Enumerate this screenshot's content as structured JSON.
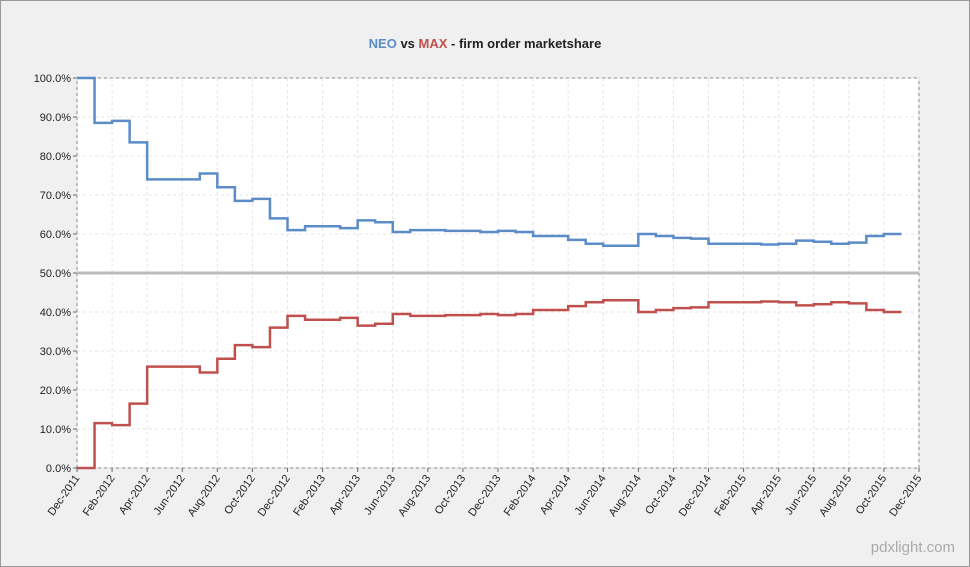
{
  "chart_data": {
    "type": "line",
    "step": true,
    "title_parts": [
      "NEO",
      " vs ",
      "MAX",
      " - firm order marketshare"
    ],
    "x": [
      "2011-12",
      "2012-01",
      "2012-02",
      "2012-03",
      "2012-04",
      "2012-05",
      "2012-06",
      "2012-07",
      "2012-08",
      "2012-09",
      "2012-10",
      "2012-11",
      "2012-12",
      "2013-01",
      "2013-02",
      "2013-03",
      "2013-04",
      "2013-05",
      "2013-06",
      "2013-07",
      "2013-08",
      "2013-09",
      "2013-10",
      "2013-11",
      "2013-12",
      "2014-01",
      "2014-02",
      "2014-03",
      "2014-04",
      "2014-05",
      "2014-06",
      "2014-07",
      "2014-08",
      "2014-09",
      "2014-10",
      "2014-11",
      "2014-12",
      "2015-01",
      "2015-02",
      "2015-03",
      "2015-04",
      "2015-05",
      "2015-06",
      "2015-07",
      "2015-08",
      "2015-09",
      "2015-10",
      "2015-11"
    ],
    "series": [
      {
        "name": "NEO",
        "color": "#5b8cc8",
        "values": [
          100,
          88.5,
          89,
          83.5,
          74,
          74,
          74,
          75.5,
          72,
          68.5,
          69,
          64,
          61,
          62,
          62,
          61.5,
          63.5,
          63,
          60.5,
          61,
          61,
          60.8,
          60.8,
          60.5,
          60.8,
          60.5,
          59.5,
          59.5,
          58.5,
          57.5,
          57,
          57,
          60,
          59.5,
          59,
          58.8,
          57.5,
          57.5,
          57.5,
          57.3,
          57.5,
          58.3,
          58,
          57.5,
          57.8,
          59.5,
          60,
          60
        ]
      },
      {
        "name": "MAX",
        "color": "#c0504d",
        "values": [
          0,
          11.5,
          11,
          16.5,
          26,
          26,
          26,
          24.5,
          28,
          31.5,
          31,
          36,
          39,
          38,
          38,
          38.5,
          36.5,
          37,
          39.5,
          39,
          39,
          39.2,
          39.2,
          39.5,
          39.2,
          39.5,
          40.5,
          40.5,
          41.5,
          42.5,
          43,
          43,
          40,
          40.5,
          41,
          41.2,
          42.5,
          42.5,
          42.5,
          42.7,
          42.5,
          41.7,
          42,
          42.5,
          42.2,
          40.5,
          40,
          40
        ]
      }
    ],
    "xlim": [
      "2011-12",
      "2015-12"
    ],
    "xticks": [
      {
        "value": "2011-12",
        "label": "Dec-2011"
      },
      {
        "value": "2012-02",
        "label": "Feb-2012"
      },
      {
        "value": "2012-04",
        "label": "Apr-2012"
      },
      {
        "value": "2012-06",
        "label": "Jun-2012"
      },
      {
        "value": "2012-08",
        "label": "Aug-2012"
      },
      {
        "value": "2012-10",
        "label": "Oct-2012"
      },
      {
        "value": "2012-12",
        "label": "Dec-2012"
      },
      {
        "value": "2013-02",
        "label": "Feb-2013"
      },
      {
        "value": "2013-04",
        "label": "Apr-2013"
      },
      {
        "value": "2013-06",
        "label": "Jun-2013"
      },
      {
        "value": "2013-08",
        "label": "Aug-2013"
      },
      {
        "value": "2013-10",
        "label": "Oct-2013"
      },
      {
        "value": "2013-12",
        "label": "Dec-2013"
      },
      {
        "value": "2014-02",
        "label": "Feb-2014"
      },
      {
        "value": "2014-04",
        "label": "Apr-2014"
      },
      {
        "value": "2014-06",
        "label": "Jun-2014"
      },
      {
        "value": "2014-08",
        "label": "Aug-2014"
      },
      {
        "value": "2014-10",
        "label": "Oct-2014"
      },
      {
        "value": "2014-12",
        "label": "Dec-2014"
      },
      {
        "value": "2015-02",
        "label": "Feb-2015"
      },
      {
        "value": "2015-04",
        "label": "Apr-2015"
      },
      {
        "value": "2015-06",
        "label": "Jun-2015"
      },
      {
        "value": "2015-08",
        "label": "Aug-2015"
      },
      {
        "value": "2015-10",
        "label": "Oct-2015"
      },
      {
        "value": "2015-12",
        "label": "Dec-2015"
      }
    ],
    "ylim": [
      0,
      100
    ],
    "yticks": [
      {
        "value": 0,
        "label": "0.0%"
      },
      {
        "value": 10,
        "label": "10.0%"
      },
      {
        "value": 20,
        "label": "20.0%"
      },
      {
        "value": 30,
        "label": "30.0%"
      },
      {
        "value": 40,
        "label": "40.0%"
      },
      {
        "value": 50,
        "label": "50.0%"
      },
      {
        "value": 60,
        "label": "60.0%"
      },
      {
        "value": 70,
        "label": "70.0%"
      },
      {
        "value": 80,
        "label": "80.0%"
      },
      {
        "value": 90,
        "label": "90.0%"
      },
      {
        "value": 100,
        "label": "100.0%"
      }
    ],
    "reference_line": 50,
    "grid": true,
    "watermark": "pdxlight.com"
  }
}
